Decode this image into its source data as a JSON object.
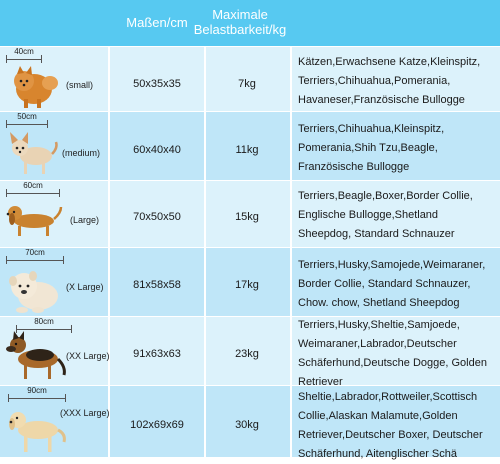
{
  "header": {
    "col_size": "Maßen/cm",
    "col_load_line1": "Maximale",
    "col_load_line2": "Belastbarkeit/kg"
  },
  "rows": [
    {
      "ruler": "40cm",
      "size_label": "(small)",
      "dims": "50x35x35",
      "load": "7kg",
      "breeds": [
        "Kätzen,Erwachsene Katze,Kleinspitz,",
        "Terriers,Chihuahua,Pomerania,",
        "Havaneser,Französische Bullogge"
      ]
    },
    {
      "ruler": "50cm",
      "size_label": "(medium)",
      "dims": "60x40x40",
      "load": "11kg",
      "breeds": [
        "Terriers,Chihuahua,Kleinspitz,",
        "Pomerania,Shih Tzu,Beagle,",
        "Französische Bullogge"
      ]
    },
    {
      "ruler": "60cm",
      "size_label": "(Large)",
      "dims": "70x50x50",
      "load": "15kg",
      "breeds": [
        "Terriers,Beagle,Boxer,Border Collie,",
        "Englische Bullogge,Shetland",
        "Sheepdog, Standard Schnauzer"
      ]
    },
    {
      "ruler": "70cm",
      "size_label": "(X Large)",
      "dims": "81x58x58",
      "load": "17kg",
      "breeds": [
        "Terriers,Husky,Samojede,Weimaraner,",
        "Border Collie, Standard Schnauzer,",
        "Chow. chow, Shetland Sheepdog"
      ]
    },
    {
      "ruler": "80cm",
      "size_label": "(XX Large)",
      "dims": "91x63x63",
      "load": "23kg",
      "breeds": [
        "Terriers,Husky,Sheltie,Samjoede,",
        "Weimaraner,Labrador,Deutscher",
        "Schäferhund,Deutsche Dogge, Golden",
        "Retriever"
      ]
    },
    {
      "ruler": "90cm",
      "size_label": "(XXX Large)",
      "dims": "102x69x69",
      "load": "30kg",
      "breeds": [
        "Sheltie,Labrador,Rottweiler,Scottisch",
        "Collie,Alaskan Malamute,Golden",
        "Retriever,Deutscher Boxer, Deutscher",
        "Schäferhund, Aitenglischer Schä"
      ]
    }
  ],
  "colors": {
    "header": "#57c9f1",
    "row_light": "#dcf2fb",
    "row_dark": "#bfe6f8"
  },
  "icons": [
    "pomeranian-dog-icon",
    "chihuahua-dog-icon",
    "dachshund-dog-icon",
    "chow-chow-puppy-icon",
    "german-shepherd-dog-icon",
    "labrador-dog-icon"
  ]
}
